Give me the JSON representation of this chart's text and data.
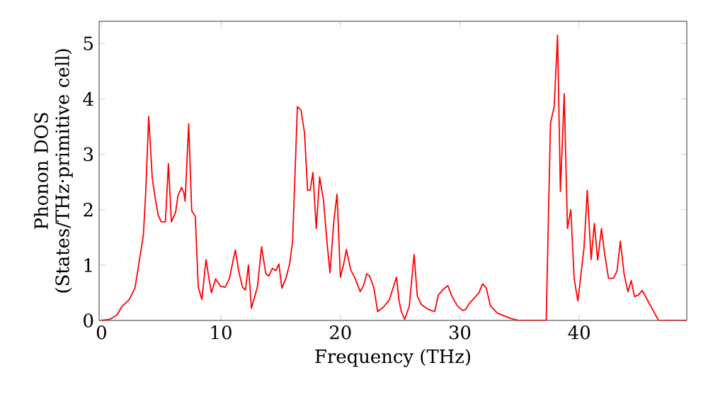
{
  "chart_data": {
    "type": "line",
    "xlabel": "Frequency (THz)",
    "ylabel": "Phonon DOS (States/THz·primitive cell)",
    "xlim": [
      -0.2,
      49
    ],
    "ylim": [
      0,
      5.4
    ],
    "xticks": [
      0,
      10,
      20,
      30,
      40
    ],
    "yticks": [
      0,
      1,
      2,
      3,
      4,
      5
    ],
    "grid": false,
    "marker": "none",
    "line_style": "solid",
    "series": [
      {
        "color": "#ff0000",
        "x": [
          0,
          0.7,
          1.3,
          1.7,
          2.3,
          2.8,
          3.5,
          3.7,
          3.95,
          4.25,
          4.5,
          4.75,
          5.0,
          5.35,
          5.6,
          5.85,
          6.2,
          6.4,
          6.7,
          6.9,
          7.0,
          7.3,
          7.55,
          7.85,
          8.1,
          8.4,
          8.75,
          9.0,
          9.2,
          9.55,
          9.95,
          10.35,
          10.7,
          11.2,
          11.5,
          11.8,
          12.05,
          12.3,
          12.55,
          13.05,
          13.4,
          13.75,
          14.0,
          14.3,
          14.6,
          14.85,
          15.1,
          15.45,
          15.75,
          16.0,
          16.4,
          16.7,
          17.0,
          17.25,
          17.47,
          17.7,
          17.98,
          18.26,
          18.58,
          18.9,
          19.13,
          19.45,
          19.72,
          20.0,
          20.28,
          20.5,
          20.87,
          21.23,
          21.66,
          21.94,
          22.2,
          22.45,
          22.8,
          23.12,
          23.6,
          24.1,
          24.43,
          24.7,
          24.9,
          25.1,
          25.38,
          25.77,
          26.17,
          26.44,
          26.8,
          27.35,
          27.9,
          28.2,
          28.65,
          29.0,
          29.33,
          29.8,
          30.24,
          30.5,
          30.8,
          31.2,
          31.6,
          31.9,
          32.2,
          32.57,
          33.16,
          34.35,
          34.94,
          37.23,
          37.59,
          37.9,
          38.18,
          38.42,
          38.74,
          39.01,
          39.29,
          39.57,
          39.88,
          40.16,
          40.4,
          40.67,
          40.99,
          41.26,
          41.54,
          41.86,
          42.13,
          42.45,
          42.85,
          43.16,
          43.44,
          43.75,
          44.07,
          44.35,
          44.62,
          44.94,
          45.26,
          45.61,
          46.13,
          46.64,
          48.97
        ],
        "values": [
          0,
          0.02,
          0.1,
          0.25,
          0.37,
          0.58,
          1.53,
          2.3,
          3.68,
          2.57,
          2.2,
          1.9,
          1.78,
          1.78,
          2.83,
          1.78,
          1.95,
          2.25,
          2.4,
          2.3,
          2.15,
          3.55,
          1.98,
          1.88,
          0.6,
          0.38,
          1.1,
          0.75,
          0.5,
          0.75,
          0.62,
          0.6,
          0.75,
          1.27,
          0.88,
          0.6,
          0.55,
          1.0,
          0.22,
          0.6,
          1.33,
          0.85,
          0.8,
          0.94,
          0.9,
          1.02,
          0.58,
          0.77,
          1.02,
          1.43,
          3.86,
          3.8,
          3.38,
          2.35,
          2.35,
          2.67,
          1.66,
          2.59,
          2.18,
          1.36,
          0.86,
          1.79,
          2.28,
          0.78,
          1.02,
          1.28,
          0.91,
          0.76,
          0.52,
          0.63,
          0.84,
          0.8,
          0.59,
          0.16,
          0.24,
          0.37,
          0.6,
          0.78,
          0.37,
          0.16,
          0.02,
          0.26,
          1.19,
          0.44,
          0.28,
          0.2,
          0.16,
          0.46,
          0.57,
          0.63,
          0.44,
          0.26,
          0.18,
          0.2,
          0.31,
          0.4,
          0.5,
          0.66,
          0.59,
          0.26,
          0.13,
          0.03,
          0,
          0,
          3.56,
          3.86,
          5.15,
          2.33,
          4.09,
          1.66,
          2.0,
          0.76,
          0.35,
          0.86,
          1.32,
          2.35,
          1.1,
          1.75,
          1.09,
          1.66,
          1.19,
          0.76,
          0.76,
          0.89,
          1.43,
          0.84,
          0.52,
          0.72,
          0.43,
          0.46,
          0.54,
          0.41,
          0.2,
          0,
          0
        ]
      }
    ]
  }
}
